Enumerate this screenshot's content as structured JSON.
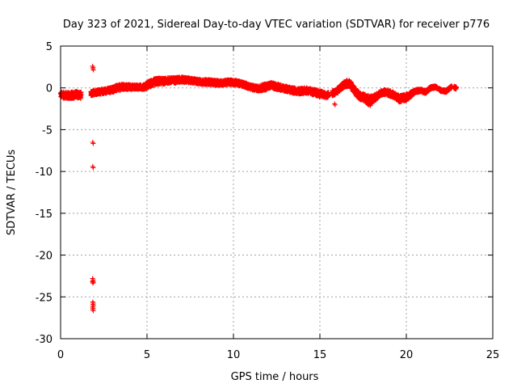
{
  "chart_data": {
    "type": "scatter",
    "title": "Day 323 of 2021, Sidereal Day-to-day VTEC variation (SDTVAR) for receiver p776",
    "xlabel": "GPS time / hours",
    "ylabel": "SDTVAR / TECUs",
    "xlim": [
      0,
      25
    ],
    "ylim": [
      -30,
      5
    ],
    "x_ticks": [
      0,
      5,
      10,
      15,
      20,
      25
    ],
    "x_tick_labels": [
      "0",
      "5",
      "10",
      "15",
      "20",
      "25"
    ],
    "y_ticks": [
      5,
      0,
      -5,
      -10,
      -15,
      -20,
      -25,
      -30
    ],
    "y_tick_labels": [
      "5",
      "0",
      "-5",
      "-10",
      "-15",
      "-20",
      "-25",
      "-30"
    ],
    "grid": true,
    "marker": "+",
    "series": [
      {
        "name": "SDTVAR",
        "color": "#ff0000",
        "band_x": [
          0.0,
          0.3,
          0.6,
          0.9,
          1.2,
          1.5,
          1.8,
          2.0,
          2.2,
          2.5,
          2.8,
          3.0,
          3.3,
          3.6,
          4.0,
          4.4,
          4.8,
          5.0,
          5.3,
          5.6,
          6.0,
          6.3,
          6.6,
          7.0,
          7.4,
          7.8,
          8.2,
          8.6,
          9.0,
          9.4,
          9.8,
          10.2,
          10.6,
          11.0,
          11.4,
          11.8,
          12.2,
          12.6,
          13.0,
          13.4,
          13.8,
          14.2,
          14.6,
          15.0,
          15.4,
          15.8,
          16.1,
          16.4,
          16.7,
          17.0,
          17.3,
          17.6,
          17.9,
          18.1,
          18.4,
          18.7,
          19.0,
          19.3,
          19.6,
          19.9,
          20.2,
          20.5,
          20.8,
          21.1,
          21.4,
          21.7,
          22.0,
          22.3,
          22.6,
          22.9
        ],
        "band_mid": [
          -0.8,
          -0.9,
          -0.9,
          -0.8,
          -0.9,
          -0.9,
          -0.7,
          -0.5,
          -0.5,
          -0.4,
          -0.3,
          -0.2,
          0.0,
          0.1,
          0.1,
          0.1,
          0.1,
          0.3,
          0.6,
          0.8,
          0.8,
          0.9,
          0.9,
          1.0,
          0.9,
          0.8,
          0.7,
          0.7,
          0.6,
          0.6,
          0.7,
          0.6,
          0.4,
          0.1,
          -0.1,
          0.1,
          0.3,
          0.1,
          -0.1,
          -0.3,
          -0.4,
          -0.3,
          -0.5,
          -0.7,
          -0.9,
          -0.6,
          -0.2,
          0.4,
          0.6,
          -0.3,
          -1.0,
          -1.2,
          -1.6,
          -1.3,
          -0.8,
          -0.5,
          -0.6,
          -0.9,
          -1.3,
          -1.2,
          -0.9,
          -0.4,
          -0.3,
          -0.5,
          0.0,
          0.1,
          -0.3,
          -0.4,
          0.1,
          0.0
        ],
        "band_spread": [
          0.7,
          0.8,
          0.8,
          0.8,
          0.8,
          0.8,
          0.6,
          0.6,
          0.6,
          0.6,
          0.6,
          0.7,
          0.7,
          0.7,
          0.6,
          0.5,
          0.6,
          0.8,
          0.8,
          0.8,
          0.7,
          0.7,
          0.7,
          0.7,
          0.6,
          0.6,
          0.6,
          0.6,
          0.6,
          0.6,
          0.6,
          0.6,
          0.6,
          0.6,
          0.6,
          0.8,
          0.7,
          0.7,
          0.7,
          0.7,
          0.7,
          0.7,
          0.7,
          0.8,
          0.6,
          0.6,
          0.7,
          0.7,
          0.8,
          0.8,
          0.8,
          0.9,
          1.2,
          0.9,
          0.6,
          0.6,
          0.7,
          0.7,
          0.8,
          0.8,
          0.7,
          0.4,
          0.4,
          0.4,
          0.3,
          0.3,
          0.3,
          0.3,
          0.3,
          0.3
        ],
        "gaps": [
          [
            1.2,
            1.75
          ],
          [
            15.5,
            15.7
          ],
          [
            21.8,
            21.9
          ],
          [
            22.65,
            22.75
          ]
        ],
        "outliers_x": [
          1.85,
          1.87,
          1.86,
          1.86,
          1.85,
          1.87,
          1.84,
          1.86,
          1.87,
          1.85,
          1.86,
          15.85
        ],
        "outliers_y": [
          2.6,
          2.3,
          -6.5,
          -9.4,
          -22.8,
          -23.1,
          -23.2,
          -25.6,
          -25.9,
          -26.2,
          -26.5,
          -1.9
        ]
      }
    ]
  }
}
